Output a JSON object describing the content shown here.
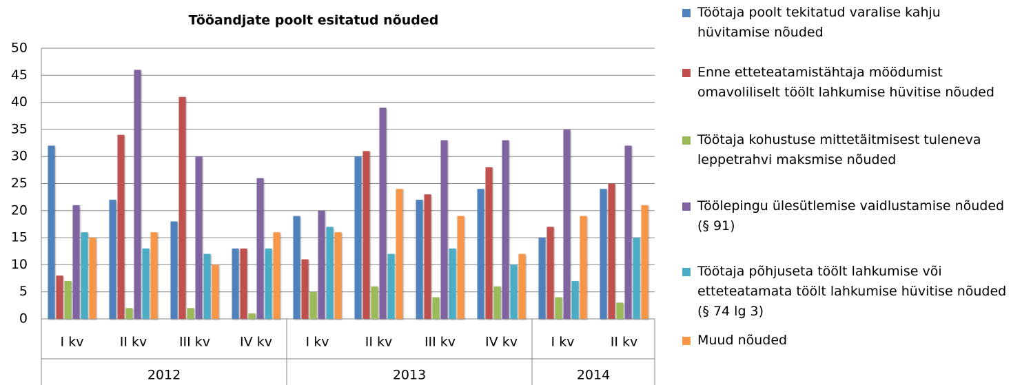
{
  "chart_data": {
    "type": "bar",
    "title": "Tööandjate poolt esitatud nõuded",
    "categories": [
      "I kv",
      "II kv",
      "III kv",
      "IV kv",
      "I kv",
      "II kv",
      "III kv",
      "IV kv",
      "I kv",
      "II kv"
    ],
    "groups": [
      {
        "label": "2012",
        "count": 4
      },
      {
        "label": "2013",
        "count": 4
      },
      {
        "label": "2014",
        "count": 2
      }
    ],
    "series": [
      {
        "name": "Töötaja poolt tekitatud varalise kahju hüvitamise nõuded",
        "color": "#4f81bd",
        "values": [
          32,
          22,
          18,
          13,
          19,
          30,
          22,
          24,
          15,
          24
        ]
      },
      {
        "name": "Enne etteteatamistähtaja möödumist omavoliliselt töölt lahkumise hüvitise nõuded",
        "color": "#c0504d",
        "values": [
          8,
          34,
          41,
          13,
          11,
          31,
          23,
          28,
          17,
          25
        ]
      },
      {
        "name": "Töötaja kohustuse mittetäitmisest tuleneva leppetrahvi maksmise nõuded",
        "color": "#9bbb59",
        "values": [
          7,
          2,
          2,
          1,
          5,
          6,
          4,
          6,
          4,
          3
        ]
      },
      {
        "name": "Töölepingu ülesütlemise vaidlustamise nõuded (§ 91)",
        "color": "#8064a2",
        "values": [
          21,
          46,
          30,
          26,
          20,
          39,
          33,
          33,
          35,
          32
        ]
      },
      {
        "name": "Töötaja põhjuseta töölt lahkumise või etteteatamata töölt lahkumise hüvitise nõuded (§ 74 lg 3)",
        "color": "#4bacc6",
        "values": [
          16,
          13,
          12,
          13,
          17,
          12,
          13,
          10,
          7,
          15
        ]
      },
      {
        "name": "Muud nõuded",
        "color": "#f79646",
        "values": [
          15,
          16,
          10,
          16,
          16,
          24,
          19,
          12,
          19,
          21
        ]
      }
    ],
    "ylim": [
      0,
      50
    ],
    "yticks": [
      0,
      5,
      10,
      15,
      20,
      25,
      30,
      35,
      40,
      45,
      50
    ],
    "grid": true,
    "legend": "right"
  }
}
